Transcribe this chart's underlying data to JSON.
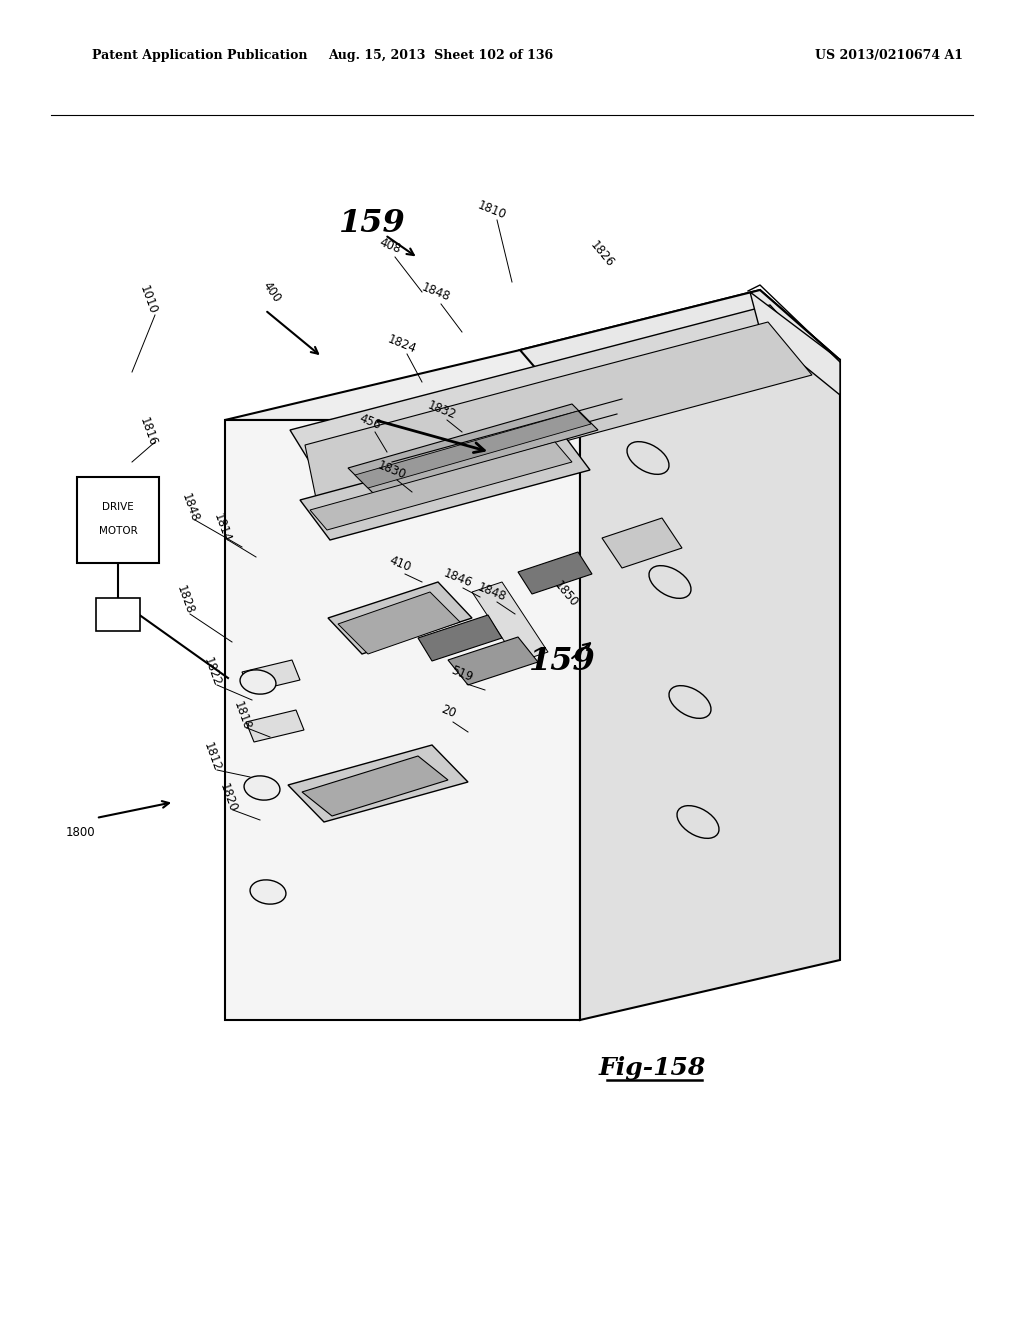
{
  "bg_color": "#ffffff",
  "header_left": "Patent Application Publication",
  "header_mid": "Aug. 15, 2013  Sheet 102 of 136",
  "header_right": "US 2013/0210674 A1",
  "fig_label": "Fig-158"
}
